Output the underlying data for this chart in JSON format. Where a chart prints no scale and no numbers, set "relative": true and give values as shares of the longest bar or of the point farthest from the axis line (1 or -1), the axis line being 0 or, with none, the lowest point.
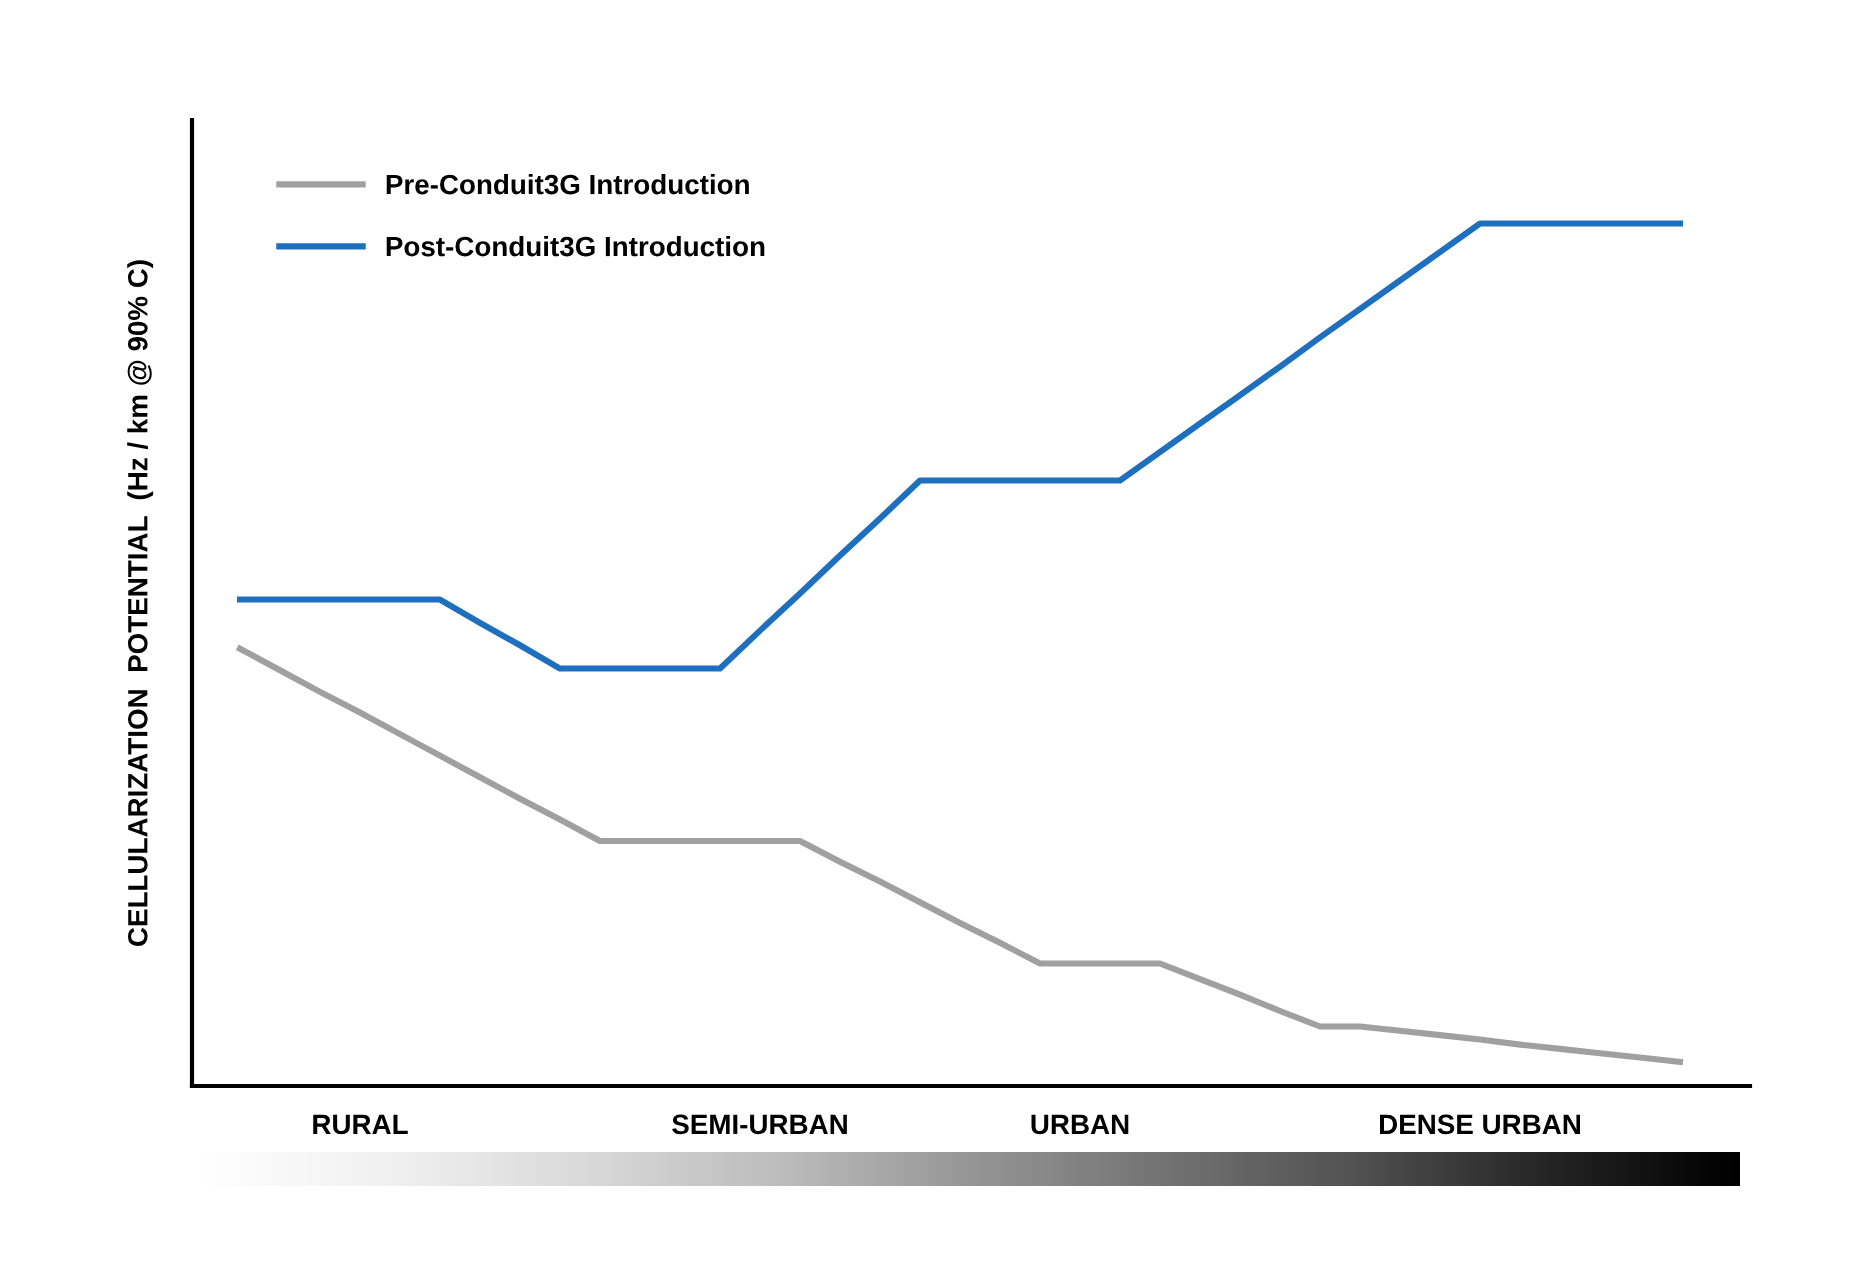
{
  "chart_data": {
    "type": "line",
    "relative": true,
    "ylabel": "CELLULARIZATION  POTENTIAL  (Hz / km @ 90% C)",
    "categories": [
      null,
      null,
      null,
      "RURAL",
      null,
      null,
      null,
      null,
      null,
      null,
      null,
      null,
      null,
      "SEMI-URBAN",
      null,
      null,
      null,
      null,
      null,
      null,
      null,
      "URBAN",
      null,
      null,
      null,
      null,
      null,
      null,
      null,
      null,
      null,
      "DENSE URBAN",
      null,
      null,
      null,
      null,
      null
    ],
    "series": [
      {
        "name": "Pre-Conduit3G Introduction",
        "color": "#a0a0a0",
        "values": [
          0.507,
          0.482,
          0.457,
          0.433,
          0.408,
          0.383,
          0.358,
          0.333,
          0.309,
          0.284,
          0.284,
          0.284,
          0.284,
          0.284,
          0.284,
          0.26,
          0.237,
          0.213,
          0.189,
          0.166,
          0.142,
          0.142,
          0.142,
          0.142,
          0.124,
          0.106,
          0.087,
          0.069,
          0.069,
          0.064,
          0.059,
          0.054,
          0.048,
          0.043,
          0.038,
          0.033,
          0.028
        ]
      },
      {
        "name": "Post-Conduit3G Introduction",
        "color": "#1f6fbf",
        "values": [
          0.564,
          0.564,
          0.564,
          0.564,
          0.564,
          0.564,
          0.537,
          0.511,
          0.484,
          0.484,
          0.484,
          0.484,
          0.484,
          0.528,
          0.571,
          0.615,
          0.658,
          0.702,
          0.702,
          0.702,
          0.702,
          0.702,
          0.702,
          0.735,
          0.768,
          0.801,
          0.834,
          0.868,
          0.901,
          0.934,
          0.967,
          1.0,
          1.0,
          1.0,
          1.0,
          1.0,
          1.0
        ]
      }
    ],
    "legend": "top left",
    "grid": false,
    "marker": "none",
    "line_style": "solid"
  }
}
